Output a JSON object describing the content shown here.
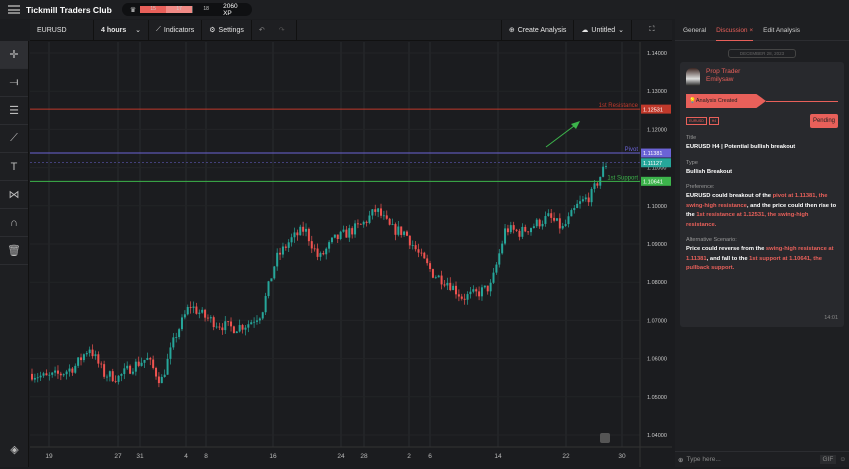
{
  "header": {
    "app_title": "Tickmill Traders Club",
    "levels": [
      "15",
      "17",
      "18"
    ],
    "xp": "2060 XP"
  },
  "toolbar": {
    "symbol": "EURUSD",
    "interval": "4 hours",
    "indicators": "Indicators",
    "settings": "Settings",
    "create_analysis": "Create Analysis",
    "save_name": "Untitled"
  },
  "left_tools": [
    "crosshair",
    "line",
    "parallel-channel",
    "fib",
    "text",
    "pattern",
    "magnet",
    "trash",
    "layers"
  ],
  "chart_data": {
    "type": "candlestick",
    "symbol": "EURUSD",
    "interval": "4 hours",
    "ylim": [
      1.035,
      1.142
    ],
    "y_ticks": [
      "1.14000",
      "1.13000",
      "1.12000",
      "1.11000",
      "1.10000",
      "1.09000",
      "1.08000",
      "1.07000",
      "1.06000",
      "1.05000",
      "1.04000"
    ],
    "x_ticks": [
      "19",
      "27",
      "31",
      "4",
      "8",
      "16",
      "24",
      "28",
      "2",
      "6",
      "14",
      "22",
      "30"
    ],
    "approx_closes": [
      1.056,
      1.055,
      1.056,
      1.058,
      1.063,
      1.056,
      1.055,
      1.058,
      1.06,
      1.054,
      1.066,
      1.074,
      1.071,
      1.069,
      1.068,
      1.069,
      1.072,
      1.086,
      1.091,
      1.094,
      1.086,
      1.091,
      1.093,
      1.095,
      1.099,
      1.094,
      1.093,
      1.087,
      1.082,
      1.08,
      1.076,
      1.077,
      1.079,
      1.094,
      1.093,
      1.095,
      1.097,
      1.094,
      1.1,
      1.103,
      1.111
    ],
    "levels": [
      {
        "label": "1st Resistance",
        "price": "1.12531",
        "value": 1.12531,
        "color": "#c0392b"
      },
      {
        "label": "Pivot",
        "price": "1.11381",
        "value": 1.11381,
        "color": "#6b63d6"
      },
      {
        "label": "1st Support",
        "price": "1.10641",
        "value": 1.10641,
        "color": "#3cb44b"
      }
    ],
    "current_price": "1.11127",
    "current_value": 1.11127,
    "current_color": "#26a69a",
    "up_color": "#26a69a",
    "down_color": "#ef5350"
  },
  "panel": {
    "tabs": [
      "General",
      "Discussion",
      "Edit Analysis"
    ],
    "date": "DECEMBER 28, 2023",
    "author_role": "Prop Trader",
    "author_name": "Emilysaw",
    "event": "Analysis Created",
    "tags": [
      "EURUSD",
      "H4"
    ],
    "status": "Pending",
    "title_label": "Title",
    "title": "EURUSD H4 | Potential bullish breakout",
    "type_label": "Type",
    "type": "Bullish Breakout",
    "pref_label": "Preference:",
    "pref": [
      [
        "EURUSD could breakout of the ",
        0
      ],
      [
        "pivot at 1.11381, the swing-high resistance",
        1
      ],
      [
        ", and the price could then rise to the ",
        0
      ],
      [
        "1st resistance at 1.12531, the swing-high resistance.",
        1
      ]
    ],
    "alt_label": "Alternative Scenario:",
    "alt": [
      [
        "Price could reverse from the ",
        0
      ],
      [
        "swing-high resistance at 1.11381",
        1
      ],
      [
        ", and fall to the ",
        0
      ],
      [
        "1st support at 1.10641, the pullback support.",
        1
      ]
    ],
    "time": "14:01",
    "input_placeholder": "Type here...",
    "gif": "GIF"
  },
  "accent": "#e8605a"
}
